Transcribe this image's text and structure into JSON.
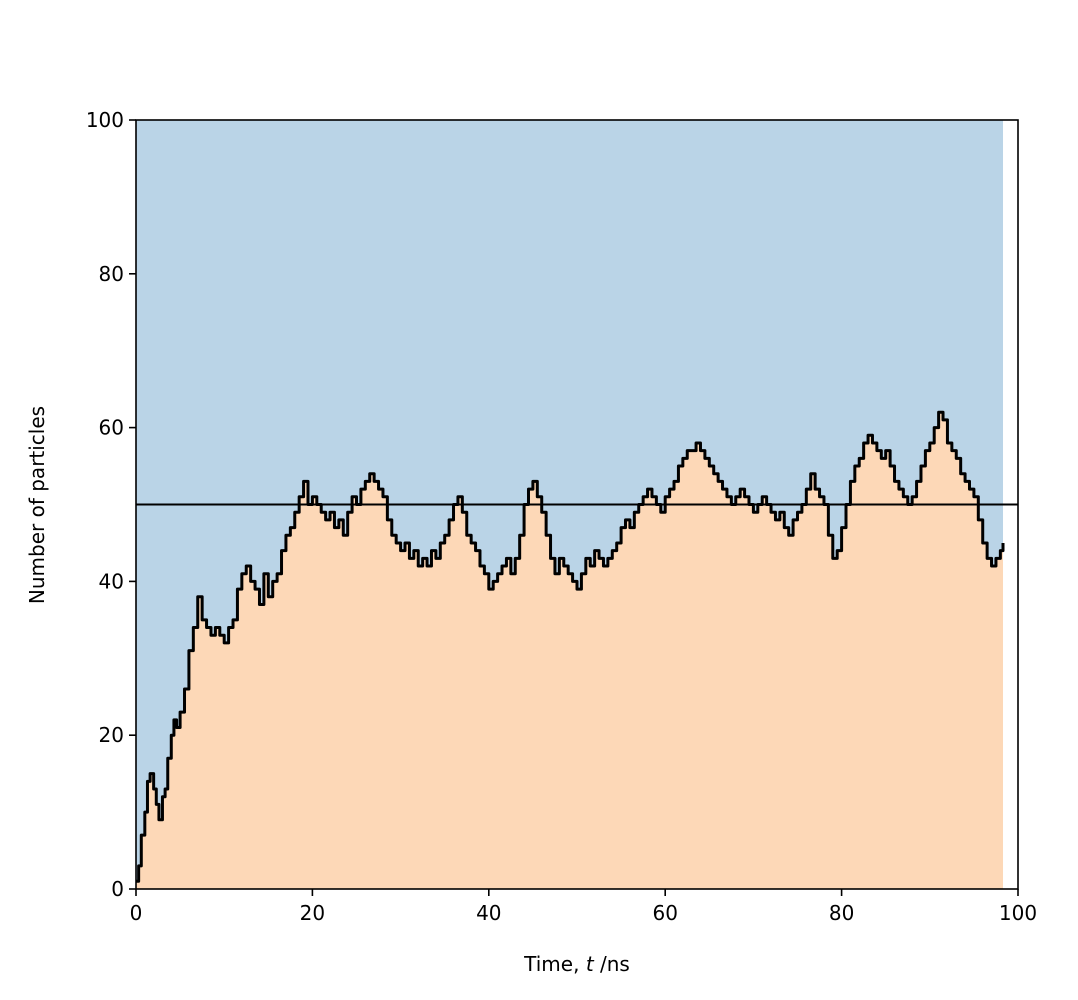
{
  "chart_data": {
    "type": "area",
    "xlabel": {
      "prefix": "Time, ",
      "var": "t",
      "suffix": " /ns"
    },
    "ylabel": "Number of particles",
    "xlim": [
      0,
      100
    ],
    "ylim": [
      0,
      100
    ],
    "x_ticks": [
      0,
      20,
      40,
      60,
      80,
      100
    ],
    "y_ticks": [
      0,
      20,
      40,
      60,
      80,
      100
    ],
    "reference_line_y": 50,
    "fill_above_color": "#bad4e7",
    "fill_below_color": "#fdd8b7",
    "line_color": "#000000",
    "series": [
      {
        "x": [
          0,
          0.3,
          0.6,
          1,
          1.3,
          1.6,
          2,
          2.3,
          2.6,
          3,
          3.3,
          3.6,
          4,
          4.3,
          4.6,
          5,
          5.5,
          6,
          6.5,
          7,
          7.5,
          8,
          8.5,
          9,
          9.5,
          10,
          10.5,
          11,
          11.5,
          12,
          12.5,
          13,
          13.5,
          14,
          14.5,
          15,
          15.5,
          16,
          16.5,
          17,
          17.5,
          18,
          18.5,
          19,
          19.5,
          20,
          20.5,
          21,
          21.5,
          22,
          22.5,
          23,
          23.5,
          24,
          24.5,
          25,
          25.5,
          26,
          26.5,
          27,
          27.5,
          28,
          28.5,
          29,
          29.5,
          30,
          30.5,
          31,
          31.5,
          32,
          32.5,
          33,
          33.5,
          34,
          34.5,
          35,
          35.5,
          36,
          36.5,
          37,
          37.5,
          38,
          38.5,
          39,
          39.5,
          40,
          40.5,
          41,
          41.5,
          42,
          42.5,
          43,
          43.5,
          44,
          44.5,
          45,
          45.5,
          46,
          46.5,
          47,
          47.5,
          48,
          48.5,
          49,
          49.5,
          50,
          50.5,
          51,
          51.5,
          52,
          52.5,
          53,
          53.5,
          54,
          54.5,
          55,
          55.5,
          56,
          56.5,
          57,
          57.5,
          58,
          58.5,
          59,
          59.5,
          60,
          60.5,
          61,
          61.5,
          62,
          62.5,
          63,
          63.5,
          64,
          64.5,
          65,
          65.5,
          66,
          66.5,
          67,
          67.5,
          68,
          68.5,
          69,
          69.5,
          70,
          70.5,
          71,
          71.5,
          72,
          72.5,
          73,
          73.5,
          74,
          74.5,
          75,
          75.5,
          76,
          76.5,
          77,
          77.5,
          78,
          78.5,
          79,
          79.5,
          80,
          80.5,
          81,
          81.5,
          82,
          82.5,
          83,
          83.5,
          84,
          84.5,
          85,
          85.5,
          86,
          86.5,
          87,
          87.5,
          88,
          88.5,
          89,
          89.5,
          90,
          90.5,
          91,
          91.5,
          92,
          92.5,
          93,
          93.5,
          94,
          94.5,
          95,
          95.5,
          96,
          96.5,
          97,
          97.5,
          98,
          98.3
        ],
        "y": [
          1,
          3,
          7,
          10,
          14,
          15,
          13,
          11,
          9,
          12,
          13,
          17,
          20,
          22,
          21,
          23,
          26,
          31,
          34,
          38,
          35,
          34,
          33,
          34,
          33,
          32,
          34,
          35,
          39,
          41,
          42,
          40,
          39,
          37,
          41,
          38,
          40,
          41,
          44,
          46,
          47,
          49,
          51,
          53,
          50,
          51,
          50,
          49,
          48,
          49,
          47,
          48,
          46,
          49,
          51,
          50,
          52,
          53,
          54,
          53,
          52,
          51,
          48,
          46,
          45,
          44,
          45,
          43,
          44,
          42,
          43,
          42,
          44,
          43,
          45,
          46,
          48,
          50,
          51,
          49,
          46,
          45,
          44,
          42,
          41,
          39,
          40,
          41,
          42,
          43,
          41,
          43,
          46,
          50,
          52,
          53,
          51,
          49,
          46,
          43,
          41,
          43,
          42,
          41,
          40,
          39,
          41,
          43,
          42,
          44,
          43,
          42,
          43,
          44,
          45,
          47,
          48,
          47,
          49,
          50,
          51,
          52,
          51,
          50,
          49,
          51,
          52,
          53,
          55,
          56,
          57,
          57,
          58,
          57,
          56,
          55,
          54,
          53,
          52,
          51,
          50,
          51,
          52,
          51,
          50,
          49,
          50,
          51,
          50,
          49,
          48,
          49,
          47,
          46,
          48,
          49,
          50,
          52,
          54,
          52,
          51,
          50,
          46,
          43,
          44,
          47,
          50,
          53,
          55,
          56,
          58,
          59,
          58,
          57,
          56,
          57,
          55,
          53,
          52,
          51,
          50,
          51,
          53,
          55,
          57,
          58,
          60,
          62,
          61,
          58,
          57,
          56,
          54,
          53,
          52,
          51,
          48,
          45,
          43,
          42,
          43,
          44,
          45
        ]
      }
    ]
  }
}
